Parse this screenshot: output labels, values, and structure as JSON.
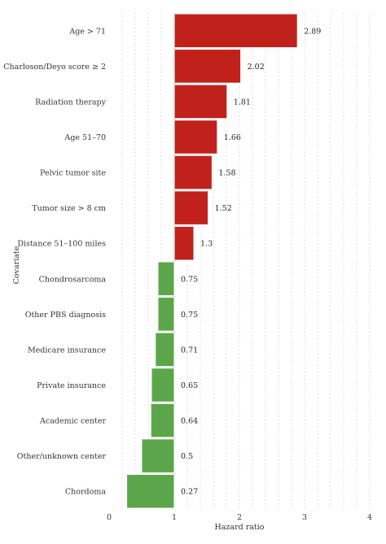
{
  "chart_data": {
    "type": "bar",
    "orientation": "horizontal",
    "baseline": 1,
    "categories": [
      "Age > 71",
      "Charloson/Deyo score ≥ 2",
      "Radiation therapy",
      "Age 51–70",
      "Pelvic tumor site",
      "Tumor size > 8 cm",
      "Distance 51–100 miles",
      "Chondrosarcoma",
      "Other PBS diagnosis",
      "Medicare insurance",
      "Private insurance",
      "Academic center",
      "Other/unknown center",
      "Chordoma"
    ],
    "values": [
      2.89,
      2.02,
      1.81,
      1.66,
      1.58,
      1.52,
      1.3,
      0.75,
      0.75,
      0.71,
      0.65,
      0.64,
      0.5,
      0.27
    ],
    "value_labels": [
      "2.89",
      "2.02",
      "1.81",
      "1.66",
      "1.58",
      "1.52",
      "1.3",
      "0.75",
      "0.75",
      "0.71",
      "0.65",
      "0.64",
      "0.5",
      "0.27"
    ],
    "xlabel": "Hazard ratio",
    "ylabel": "Covariate",
    "xlim": [
      0,
      4
    ],
    "xticks": [
      0,
      1,
      2,
      3,
      4
    ],
    "xtick_labels": [
      "0",
      "1",
      "2",
      "3",
      "4"
    ],
    "grid": true,
    "legend": "none",
    "colors": {
      "above_1": "#c0221b",
      "below_1": "#5ba64b"
    }
  }
}
